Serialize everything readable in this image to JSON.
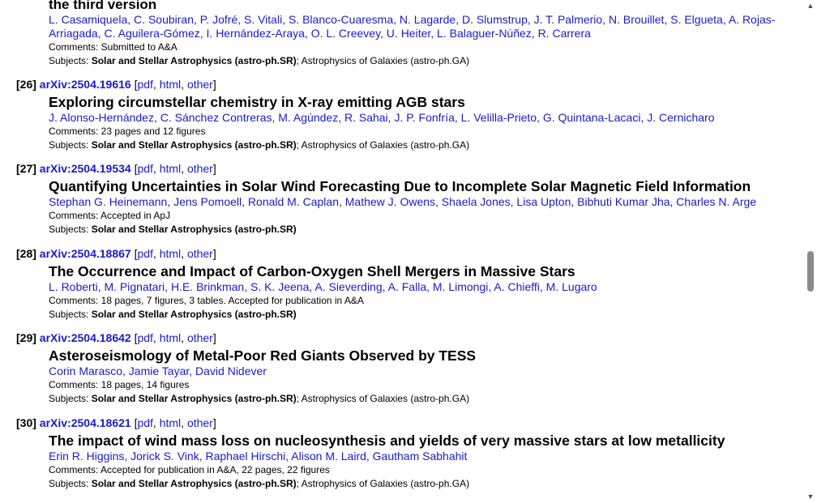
{
  "top_entry": {
    "title_tail": "the third version",
    "authors_line1": "L. Casamiquela, C. Soubiran, P. Jofré, S. Vitali, S. Blanco-Cuaresma, N. Lagarde, D. Slumstrup, J. T. Palmerio, N. Brouillet, S. Elgueta, A. Rojas-",
    "authors_line2": "Arriagada, C. Aguilera-Gómez, I. Hernández-Araya, O. L. Creevey, U. Heiter, L. Balaguer-Núñez, R. Carrera",
    "comments": "Comments: Submitted to A&A",
    "subjects_prefix": "Subjects: ",
    "subjects_primary": "Solar and Stellar Astrophysics (astro-ph.SR)",
    "subjects_rest": "; Astrophysics of Galaxies (astro-ph.GA)"
  },
  "entries": [
    {
      "index": "[26]",
      "arxiv": "arXiv:2504.19616",
      "pdf": "pdf",
      "html": "html",
      "other": "other",
      "title": "Exploring circumstellar chemistry in X-ray emitting AGB stars",
      "authors": "J. Alonso-Hernández, C. Sánchez Contreras, M. Agúndez, R. Sahai, J. P. Fonfría, L. Velilla-Prieto, G. Quintana-Lacaci, J. Cernicharo",
      "comments": "Comments: 23 pages and 12 figures",
      "subjects_prefix": "Subjects: ",
      "subjects_primary": "Solar and Stellar Astrophysics (astro-ph.SR)",
      "subjects_rest": "; Astrophysics of Galaxies (astro-ph.GA)"
    },
    {
      "index": "[27]",
      "arxiv": "arXiv:2504.19534",
      "pdf": "pdf",
      "html": "html",
      "other": "other",
      "title": "Quantifying Uncertainties in Solar Wind Forecasting Due to Incomplete Solar Magnetic Field Information",
      "authors": "Stephan G. Heinemann, Jens Pomoell, Ronald M. Caplan, Mathew J. Owens, Shaela Jones, Lisa Upton, Bibhuti Kumar Jha, Charles N. Arge",
      "comments": "Comments: Accepted in ApJ",
      "subjects_prefix": "Subjects: ",
      "subjects_primary": "Solar and Stellar Astrophysics (astro-ph.SR)",
      "subjects_rest": ""
    },
    {
      "index": "[28]",
      "arxiv": "arXiv:2504.18867",
      "pdf": "pdf",
      "html": "html",
      "other": "other",
      "title": "The Occurrence and Impact of Carbon-Oxygen Shell Mergers in Massive Stars",
      "authors": "L. Roberti, M. Pignatari, H.E. Brinkman, S. K. Jeena, A. Sieverding, A. Falla, M. Limongi, A. Chieffi, M. Lugaro",
      "comments": "Comments: 18 pages, 7 figures, 3 tables. Accepted for publication in A&A",
      "subjects_prefix": "Subjects: ",
      "subjects_primary": "Solar and Stellar Astrophysics (astro-ph.SR)",
      "subjects_rest": ""
    },
    {
      "index": "[29]",
      "arxiv": "arXiv:2504.18642",
      "pdf": "pdf",
      "html": "html",
      "other": "other",
      "title": "Asteroseismology of Metal-Poor Red Giants Observed by TESS",
      "authors": "Corin Marasco, Jamie Tayar, David Nidever",
      "comments": "Comments: 18 pages, 14 figures",
      "subjects_prefix": "Subjects: ",
      "subjects_primary": "Solar and Stellar Astrophysics (astro-ph.SR)",
      "subjects_rest": "; Astrophysics of Galaxies (astro-ph.GA)"
    },
    {
      "index": "[30]",
      "arxiv": "arXiv:2504.18621",
      "pdf": "pdf",
      "html": "html",
      "other": "other",
      "title": "The impact of wind mass loss on nucleosynthesis and yields of very massive stars at low metallicity",
      "authors": "Erin R. Higgins, Jorick S. Vink, Raphael Hirschi, Alison M. Laird, Gautham Sabhahit",
      "comments": "Comments: Accepted for publication in A&A, 22 pages, 22 figures",
      "subjects_prefix": "Subjects: ",
      "subjects_primary": "Solar and Stellar Astrophysics (astro-ph.SR)",
      "subjects_rest": "; Astrophysics of Galaxies (astro-ph.GA)"
    }
  ],
  "scrollbar": {
    "up_icon": "triangle-up",
    "down_icon": "triangle-down"
  },
  "colors": {
    "link": "#1a1acc",
    "text": "#000000",
    "thumb": "#8a8a8a"
  }
}
